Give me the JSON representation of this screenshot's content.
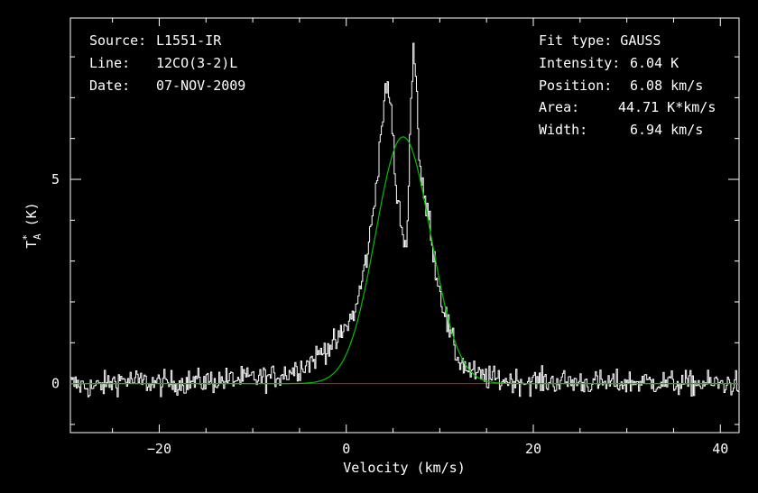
{
  "chart_data": {
    "type": "line",
    "title": "",
    "xlabel": "Velocity (km/s)",
    "ylabel": "T",
    "ylabel_sup": "*",
    "ylabel_sub": "A",
    "ylabel_unit": "(K)",
    "xlim": [
      -29.5,
      42
    ],
    "ylim": [
      -1.2,
      8.95
    ],
    "x_ticks": [
      -20,
      0,
      20,
      40
    ],
    "y_ticks": [
      0,
      5
    ],
    "x_tick_labels": [
      "−20",
      "0",
      "20",
      "40"
    ],
    "y_tick_labels": [
      "0",
      "5"
    ],
    "grid": false,
    "legend": "none",
    "info_left": [
      {
        "key": "Source:",
        "value": "L1551-IR"
      },
      {
        "key": "Line:",
        "value": "12CO(3-2)L"
      },
      {
        "key": "Date:",
        "value": "07-NOV-2009"
      }
    ],
    "info_right_header": "Fit type: GAUSS",
    "info_right": [
      {
        "key": "Intensity:",
        "value": "6.04 K"
      },
      {
        "key": "Position:",
        "value": "6.08 km/s"
      },
      {
        "key": "Area:",
        "value": "44.71 K*km/s"
      },
      {
        "key": "Width:",
        "value": "6.94 km/s"
      }
    ],
    "series": [
      {
        "role": "spectrum",
        "color": "#ffffff",
        "x": [
          -29.5,
          -27.0,
          -24.0,
          -20.0,
          -16.0,
          -12.0,
          -8.0,
          -6.0,
          -4.0,
          -3.0,
          -2.0,
          -1.0,
          0.0,
          1.0,
          1.5,
          2.0,
          2.5,
          3.0,
          3.5,
          4.0,
          4.5,
          5.0,
          5.3,
          5.6,
          6.0,
          6.3,
          6.6,
          6.9,
          7.2,
          7.5,
          7.8,
          8.1,
          8.5,
          9.0,
          9.5,
          10.0,
          10.5,
          11.0,
          11.5,
          12.0,
          13.0,
          14.0,
          16.0,
          20.0,
          24.0,
          28.0,
          32.0,
          36.0,
          40.0,
          42.0
        ],
        "y": [
          0.0,
          -0.1,
          0.1,
          0.0,
          0.05,
          0.1,
          0.15,
          0.3,
          0.5,
          0.7,
          0.9,
          1.0,
          1.4,
          1.8,
          2.3,
          2.9,
          3.5,
          4.4,
          5.6,
          6.8,
          7.3,
          6.2,
          4.7,
          4.3,
          3.8,
          3.2,
          4.3,
          6.7,
          8.3,
          7.5,
          5.6,
          4.8,
          4.4,
          3.9,
          2.9,
          2.3,
          1.8,
          1.3,
          0.9,
          0.6,
          0.35,
          0.2,
          0.1,
          0.05,
          0.05,
          0.0,
          0.05,
          0.0,
          0.0,
          0.0
        ]
      },
      {
        "role": "gaussian-fit",
        "color": "#00c000",
        "amplitude": 6.04,
        "center": 6.08,
        "fwhm": 6.94
      },
      {
        "role": "baseline",
        "color": "#ff0000",
        "y": 0
      }
    ]
  }
}
